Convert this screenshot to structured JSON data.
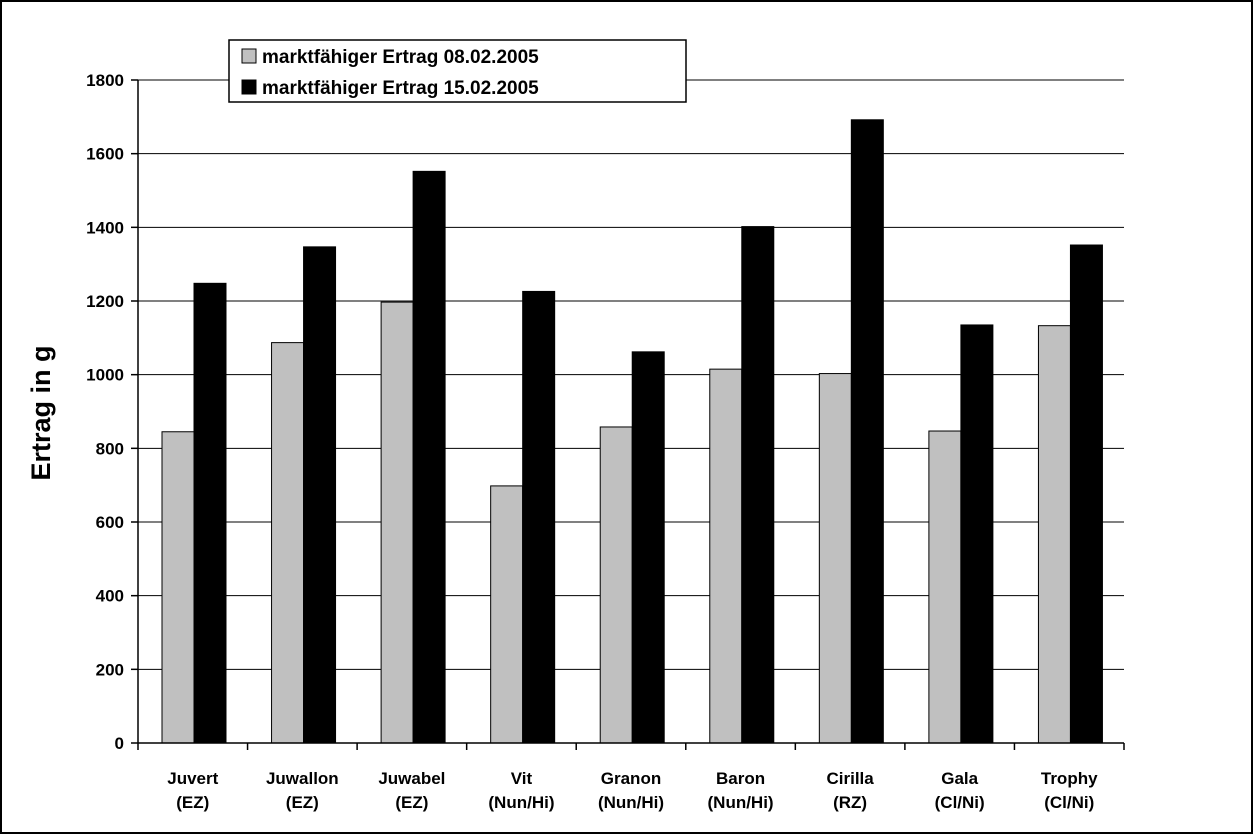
{
  "chart_data": {
    "type": "bar",
    "categories": [
      [
        "Juvert",
        "(EZ)"
      ],
      [
        "Juwallon",
        "(EZ)"
      ],
      [
        "Juwabel",
        "(EZ)"
      ],
      [
        "Vit",
        "(Nun/Hi)"
      ],
      [
        "Granon",
        "(Nun/Hi)"
      ],
      [
        "Baron",
        "(Nun/Hi)"
      ],
      [
        "Cirilla",
        "(RZ)"
      ],
      [
        "Gala",
        "(Cl/Ni)"
      ],
      [
        "Trophy",
        "(Cl/Ni)"
      ]
    ],
    "series": [
      {
        "name": "marktfähiger Ertrag 08.02.2005",
        "color": "#c0c0c0",
        "values": [
          845,
          1087,
          1197,
          698,
          858,
          1015,
          1003,
          847,
          1133
        ]
      },
      {
        "name": "marktfähiger Ertrag 15.02.2005",
        "color": "#000000",
        "values": [
          1248,
          1347,
          1552,
          1226,
          1062,
          1402,
          1692,
          1135,
          1352
        ]
      }
    ],
    "xlabel": "",
    "ylabel": "Ertrag in g",
    "ylim": [
      0,
      1800
    ],
    "yticks": [
      0,
      200,
      400,
      600,
      800,
      1000,
      1200,
      1400,
      1600,
      1800
    ],
    "grid": true,
    "legend": "top-left"
  }
}
